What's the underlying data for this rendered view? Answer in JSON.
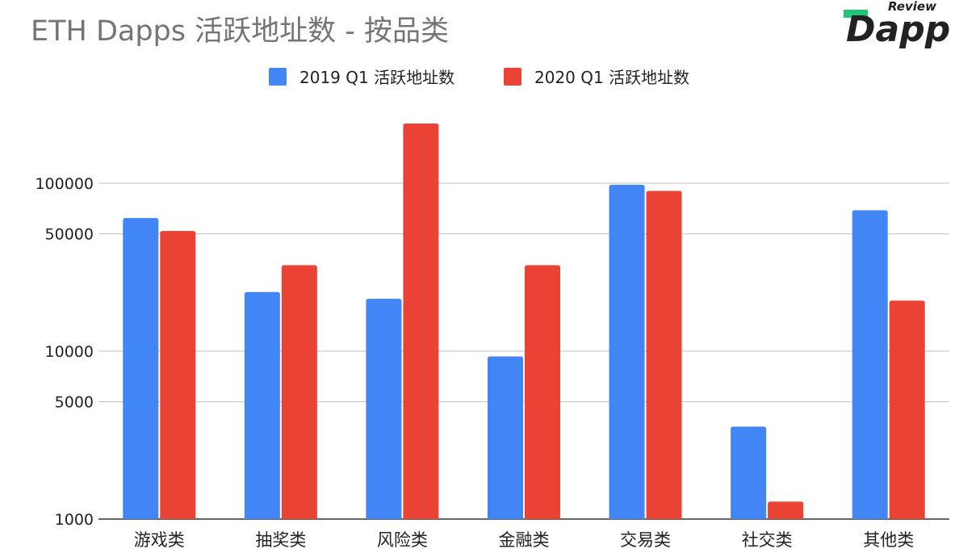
{
  "brand": {
    "name": "Dapp Review",
    "word_top": "Review",
    "word_main": "Dapp",
    "accent_color": "#1fc776",
    "text_color": "#222222"
  },
  "colors": {
    "series_2019": "#4285f4",
    "series_2020": "#ea4335",
    "grid": "#cccccc",
    "axis_text": "#222222",
    "title_text": "#757575"
  },
  "chart_data": {
    "type": "bar",
    "title": "ETH Dapps 活跃地址数 - 按品类",
    "xlabel": "",
    "ylabel": "",
    "yscale": "log",
    "ylim": [
      1000,
      250000
    ],
    "yticks": [
      1000,
      5000,
      10000,
      50000,
      100000
    ],
    "ytick_labels": [
      "1000",
      "5000",
      "10000",
      "50000",
      "100000"
    ],
    "grid": true,
    "legend_position": "top-center",
    "categories": [
      "游戏类",
      "抽奖类",
      "风险类",
      "金融类",
      "交易类",
      "社交类",
      "其他类"
    ],
    "series": [
      {
        "name": "2019 Q1 活跃地址数",
        "values": [
          62000,
          22500,
          20500,
          9300,
          98000,
          3550,
          69000
        ]
      },
      {
        "name": "2020 Q1 活跃地址数",
        "values": [
          52000,
          32500,
          227000,
          32500,
          90000,
          1270,
          20000
        ]
      }
    ]
  }
}
